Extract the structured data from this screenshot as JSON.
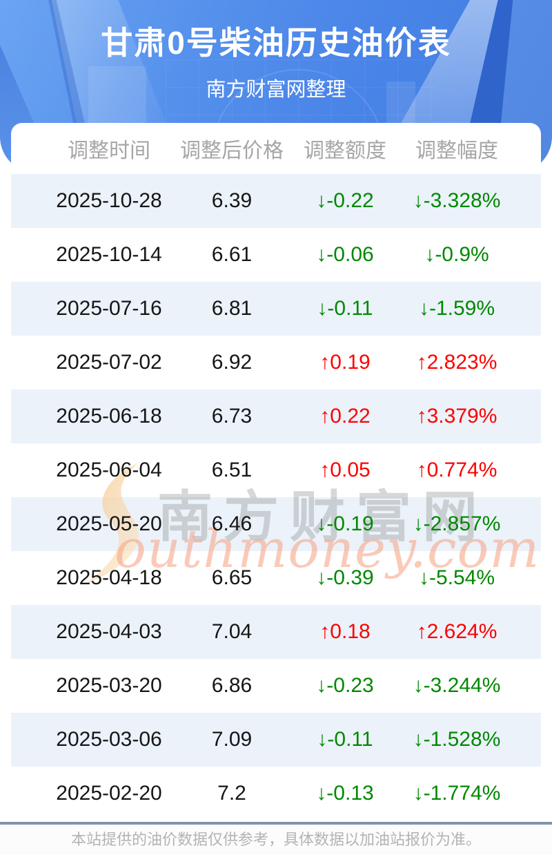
{
  "banner": {
    "title": "甘肃0号柴油历史油价表",
    "subtitle": "南方财富网整理"
  },
  "table": {
    "columns": [
      "调整时间",
      "调整后价格",
      "调整额度",
      "调整幅度"
    ],
    "rows": [
      {
        "date": "2025-10-28",
        "price": "6.39",
        "change": "↓-0.22",
        "percent": "↓-3.328%",
        "trend": "down"
      },
      {
        "date": "2025-10-14",
        "price": "6.61",
        "change": "↓-0.06",
        "percent": "↓-0.9%",
        "trend": "down"
      },
      {
        "date": "2025-07-16",
        "price": "6.81",
        "change": "↓-0.11",
        "percent": "↓-1.59%",
        "trend": "down"
      },
      {
        "date": "2025-07-02",
        "price": "6.92",
        "change": "↑0.19",
        "percent": "↑2.823%",
        "trend": "up"
      },
      {
        "date": "2025-06-18",
        "price": "6.73",
        "change": "↑0.22",
        "percent": "↑3.379%",
        "trend": "up"
      },
      {
        "date": "2025-06-04",
        "price": "6.51",
        "change": "↑0.05",
        "percent": "↑0.774%",
        "trend": "up"
      },
      {
        "date": "2025-05-20",
        "price": "6.46",
        "change": "↓-0.19",
        "percent": "↓-2.857%",
        "trend": "down"
      },
      {
        "date": "2025-04-18",
        "price": "6.65",
        "change": "↓-0.39",
        "percent": "↓-5.54%",
        "trend": "down"
      },
      {
        "date": "2025-04-03",
        "price": "7.04",
        "change": "↑0.18",
        "percent": "↑2.624%",
        "trend": "up"
      },
      {
        "date": "2025-03-20",
        "price": "6.86",
        "change": "↓-0.23",
        "percent": "↓-3.244%",
        "trend": "down"
      },
      {
        "date": "2025-03-06",
        "price": "7.09",
        "change": "↓-0.11",
        "percent": "↓-1.528%",
        "trend": "down"
      },
      {
        "date": "2025-02-20",
        "price": "7.2",
        "change": "↓-0.13",
        "percent": "↓-1.774%",
        "trend": "down"
      }
    ]
  },
  "watermark": {
    "cn": "南方财富网",
    "en": "outhmoney.com"
  },
  "footer": {
    "note": "本站提供的油价数据仅供参考，具体数据以加油站报价为准。"
  },
  "colors": {
    "up_red": "#fe0000",
    "down_green": "#008800",
    "banner_blue": "#4a85e8",
    "row_alt_bg": "#ebf2fa",
    "footer_line": "#7e95aa"
  },
  "chart_data": {
    "type": "table",
    "title": "甘肃0号柴油历史油价表",
    "subtitle": "南方财富网整理",
    "columns": [
      "调整时间",
      "调整后价格",
      "调整额度",
      "调整幅度"
    ],
    "rows": [
      [
        "2025-10-28",
        6.39,
        -0.22,
        "-3.328%"
      ],
      [
        "2025-10-14",
        6.61,
        -0.06,
        "-0.9%"
      ],
      [
        "2025-07-16",
        6.81,
        -0.11,
        "-1.59%"
      ],
      [
        "2025-07-02",
        6.92,
        0.19,
        "2.823%"
      ],
      [
        "2025-06-18",
        6.73,
        0.22,
        "3.379%"
      ],
      [
        "2025-06-04",
        6.51,
        0.05,
        "0.774%"
      ],
      [
        "2025-05-20",
        6.46,
        -0.19,
        "-2.857%"
      ],
      [
        "2025-04-18",
        6.65,
        -0.39,
        "-5.54%"
      ],
      [
        "2025-04-03",
        7.04,
        0.18,
        "2.624%"
      ],
      [
        "2025-03-20",
        6.86,
        -0.23,
        "-3.244%"
      ],
      [
        "2025-03-06",
        7.09,
        -0.11,
        "-1.528%"
      ],
      [
        "2025-02-20",
        7.2,
        -0.13,
        "-1.774%"
      ]
    ]
  }
}
